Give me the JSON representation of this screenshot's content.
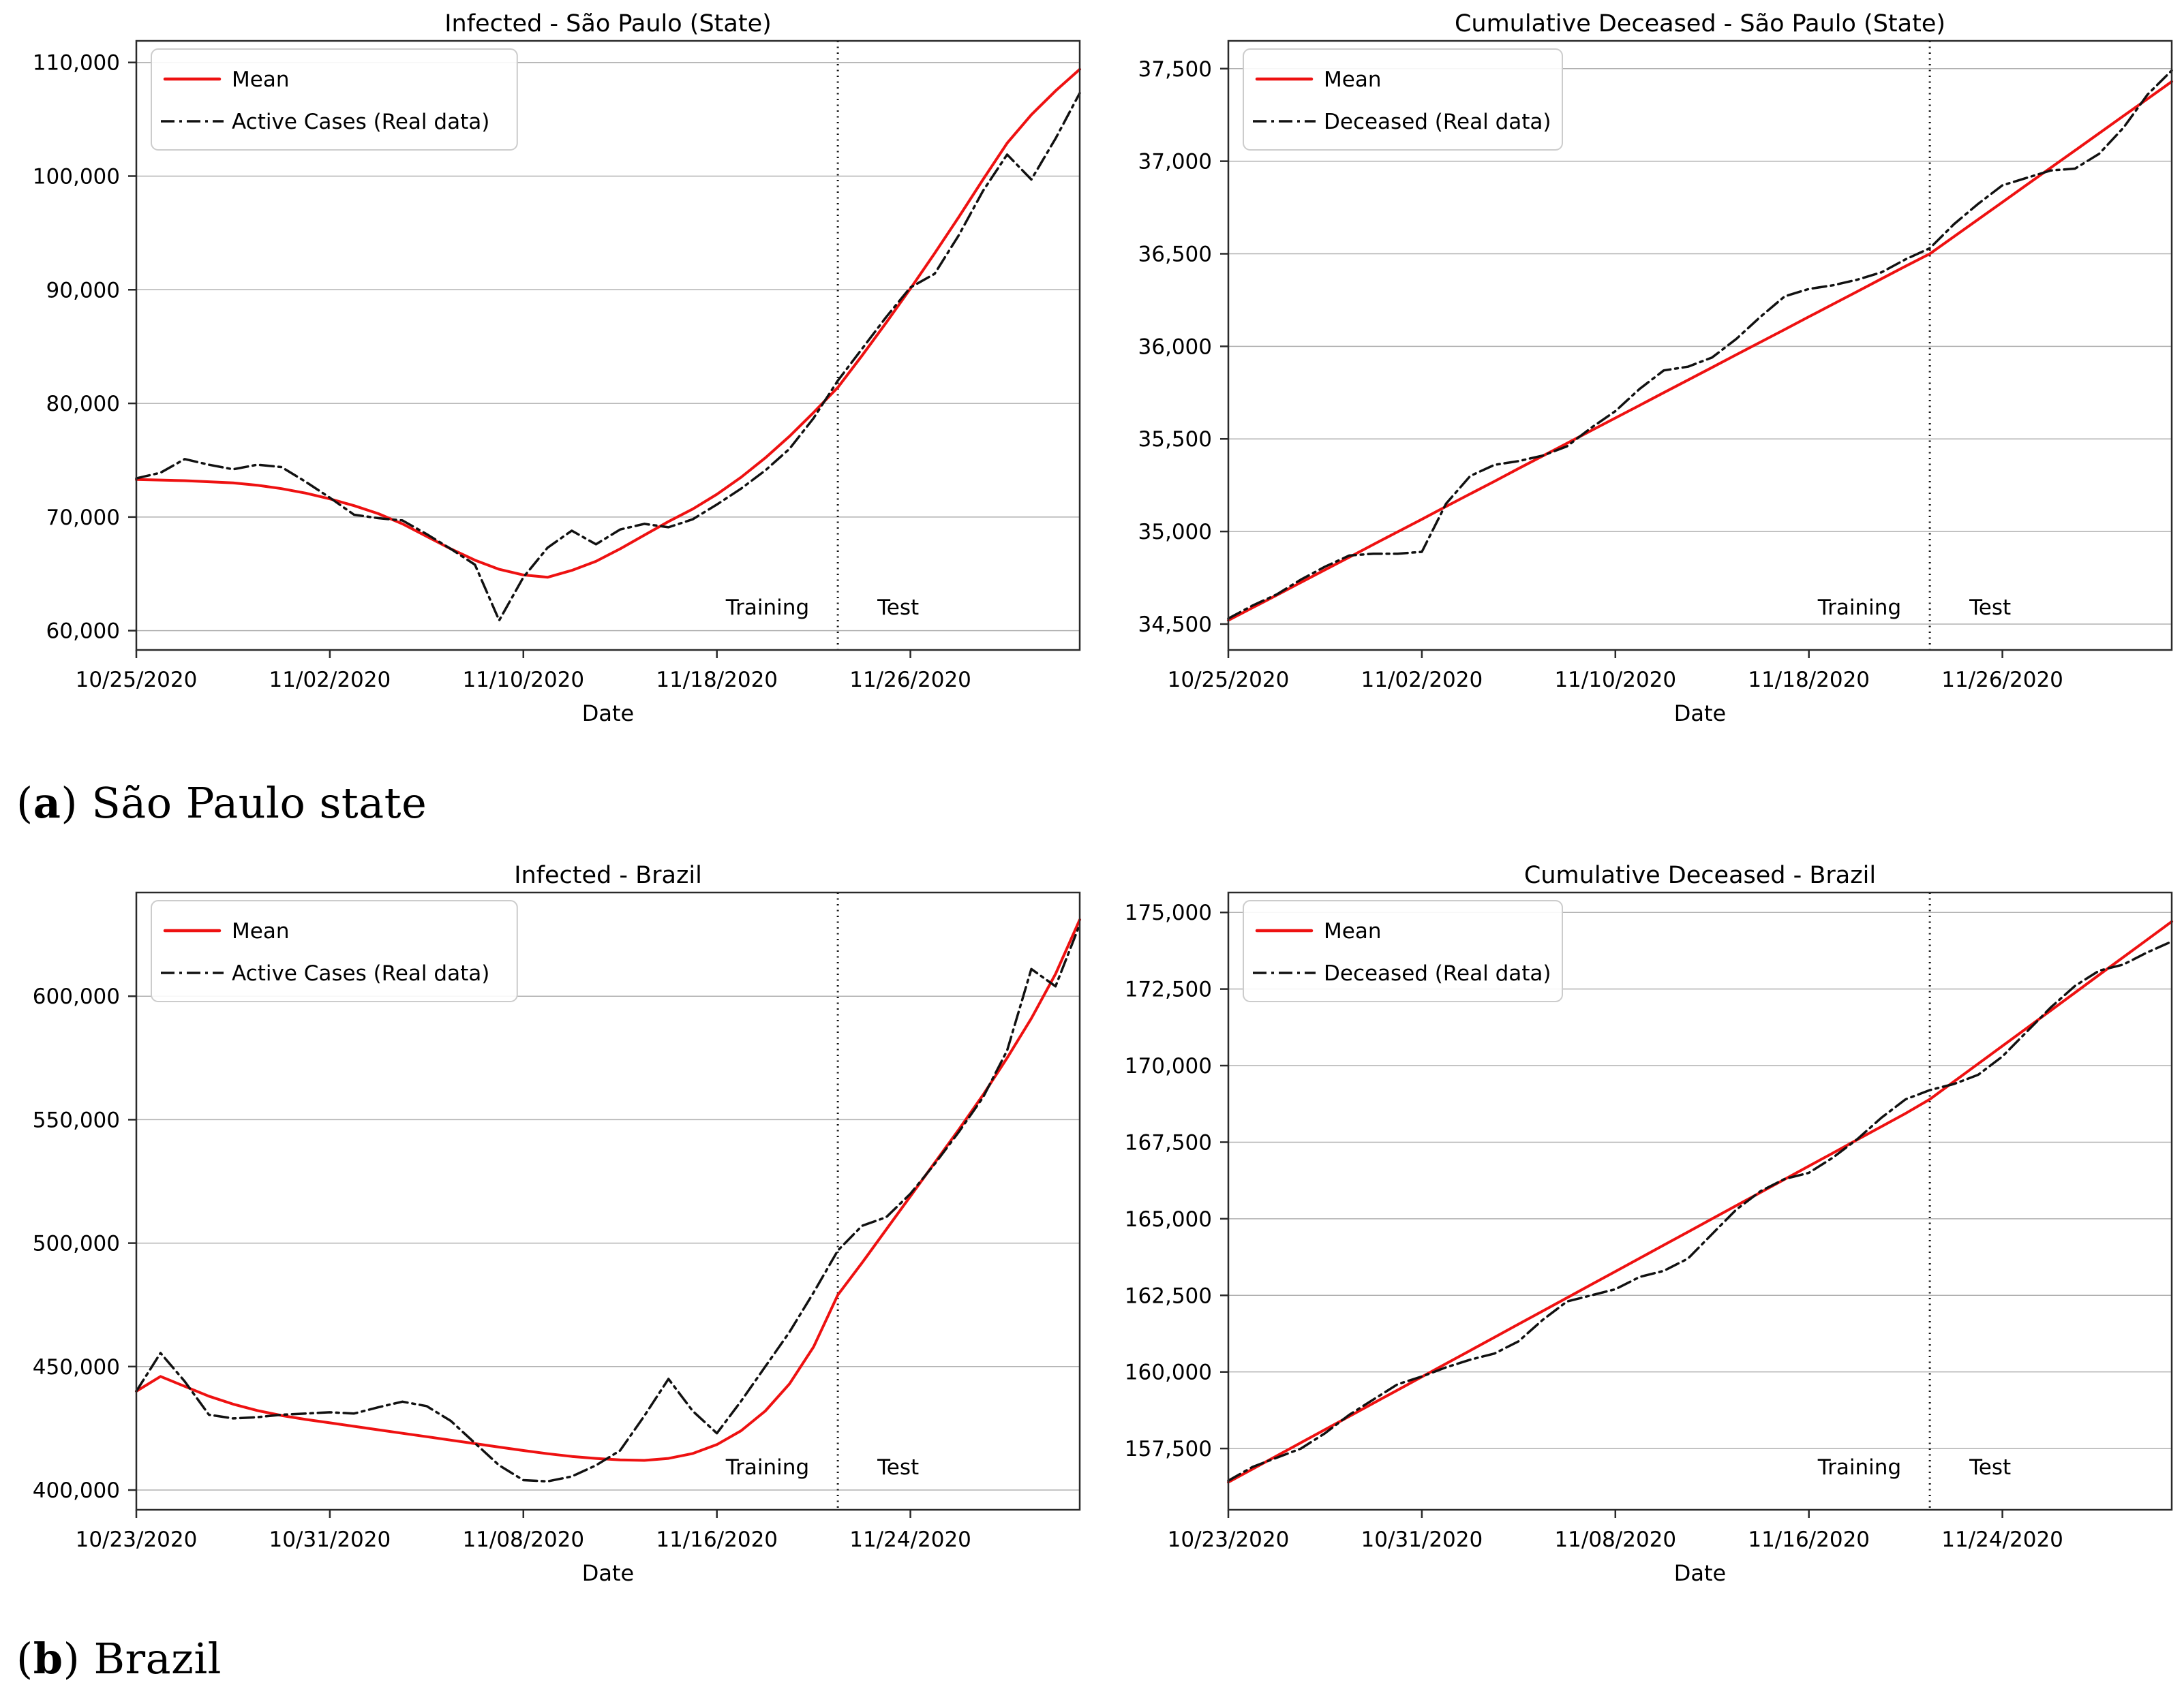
{
  "figure": {
    "captions": [
      {
        "letter": "a",
        "text": "São Paulo state"
      },
      {
        "letter": "b",
        "text": "Brazil"
      }
    ],
    "annotations": {
      "training": "Training",
      "test": "Test"
    },
    "colors": {
      "mean": "#ee1111",
      "real": "#111111",
      "grid": "#b0b0b0",
      "spine": "#2a2a2a",
      "text": "#000000"
    }
  },
  "chart_data": [
    {
      "type": "line",
      "title": "Infected - São Paulo (State)",
      "xlabel": "Date",
      "x_tick_labels": [
        "10/25/2020",
        "11/02/2020",
        "11/10/2020",
        "11/18/2020",
        "11/26/2020"
      ],
      "x_tick_days": [
        0,
        8,
        16,
        24,
        32
      ],
      "x_domain_days": [
        0,
        39
      ],
      "start_date": "10/25/2020",
      "ylim": [
        58300,
        111900
      ],
      "y_ticks": [
        60000,
        70000,
        80000,
        90000,
        100000,
        110000
      ],
      "grid": true,
      "legend_position": "upper left",
      "train_test_split_day": 29,
      "legend": [
        "Mean",
        "Active Cases (Real data)"
      ],
      "series": [
        {
          "name": "Mean",
          "style": "solid-red",
          "values": [
            73300,
            73250,
            73200,
            73100,
            73000,
            72800,
            72500,
            72100,
            71600,
            71000,
            70300,
            69400,
            68300,
            67200,
            66200,
            65400,
            64900,
            64700,
            65300,
            66100,
            67200,
            68400,
            69600,
            70700,
            72000,
            73500,
            75200,
            77100,
            79200,
            81400,
            84200,
            87100,
            90100,
            93200,
            96400,
            99700,
            102900,
            105400,
            107500,
            109400
          ]
        },
        {
          "name": "Active Cases (Real data)",
          "style": "dashdot-black",
          "values": [
            73400,
            73900,
            75100,
            74600,
            74200,
            74600,
            74400,
            73100,
            71700,
            70200,
            69900,
            69700,
            68500,
            67200,
            65800,
            60900,
            64700,
            67300,
            68800,
            67600,
            68900,
            69400,
            69100,
            69800,
            71100,
            72500,
            74100,
            76000,
            78700,
            82000,
            84800,
            87600,
            90200,
            91400,
            94800,
            98700,
            101900,
            99700,
            103300,
            107300
          ]
        }
      ]
    },
    {
      "type": "line",
      "title": "Cumulative Deceased - São Paulo (State)",
      "xlabel": "Date",
      "x_tick_labels": [
        "10/25/2020",
        "11/02/2020",
        "11/10/2020",
        "11/18/2020",
        "11/26/2020"
      ],
      "x_tick_days": [
        0,
        8,
        16,
        24,
        32
      ],
      "x_domain_days": [
        0,
        39
      ],
      "start_date": "10/25/2020",
      "ylim": [
        34360,
        37650
      ],
      "y_ticks": [
        34500,
        35000,
        35500,
        36000,
        36500,
        37000,
        37500
      ],
      "grid": true,
      "legend_position": "upper left",
      "train_test_split_day": 29,
      "legend": [
        "Mean",
        "Deceased (Real data)"
      ],
      "series": [
        {
          "name": "Mean",
          "style": "solid-red",
          "values": [
            34520,
            34588,
            34656,
            34725,
            34793,
            34861,
            34930,
            34998,
            35066,
            35135,
            35203,
            35271,
            35340,
            35408,
            35476,
            35545,
            35613,
            35681,
            35750,
            35818,
            35886,
            35955,
            36023,
            36091,
            36160,
            36228,
            36296,
            36365,
            36433,
            36500,
            36593,
            36686,
            36779,
            36872,
            36965,
            37058,
            37151,
            37244,
            37337,
            37430
          ]
        },
        {
          "name": "Deceased (Real data)",
          "style": "dashdot-black",
          "values": [
            34530,
            34600,
            34660,
            34740,
            34810,
            34870,
            34880,
            34880,
            34890,
            35150,
            35300,
            35360,
            35380,
            35410,
            35460,
            35560,
            35650,
            35770,
            35870,
            35890,
            35940,
            36040,
            36160,
            36270,
            36310,
            36330,
            36360,
            36400,
            36470,
            36530,
            36660,
            36770,
            36870,
            36910,
            36950,
            36960,
            37040,
            37180,
            37360,
            37490
          ]
        }
      ]
    },
    {
      "type": "line",
      "title": "Infected - Brazil",
      "xlabel": "Date",
      "x_tick_labels": [
        "10/23/2020",
        "10/31/2020",
        "11/08/2020",
        "11/16/2020",
        "11/24/2020"
      ],
      "x_tick_days": [
        0,
        8,
        16,
        24,
        32
      ],
      "x_domain_days": [
        0,
        39
      ],
      "start_date": "10/23/2020",
      "ylim": [
        392000,
        642000
      ],
      "y_ticks": [
        400000,
        450000,
        500000,
        550000,
        600000
      ],
      "grid": true,
      "legend_position": "upper left",
      "train_test_split_day": 29,
      "legend": [
        "Mean",
        "Active Cases (Real data)"
      ],
      "series": [
        {
          "name": "Mean",
          "style": "solid-red",
          "values": [
            440000,
            446000,
            442000,
            438000,
            434800,
            432200,
            430200,
            428600,
            427200,
            425800,
            424400,
            423000,
            421600,
            420200,
            418800,
            417400,
            416000,
            414700,
            413600,
            412800,
            412200,
            412000,
            412800,
            414800,
            418400,
            424000,
            432000,
            443000,
            458000,
            479000,
            492000,
            505500,
            519000,
            532500,
            546000,
            560000,
            575000,
            591000,
            609000,
            631000
          ]
        },
        {
          "name": "Active Cases (Real data)",
          "style": "dashdot-black",
          "values": [
            440000,
            455500,
            444000,
            430500,
            429000,
            429500,
            430500,
            431000,
            431500,
            431000,
            433500,
            435800,
            434000,
            428000,
            419000,
            410000,
            404000,
            403500,
            405500,
            410000,
            416000,
            430000,
            445000,
            432000,
            423000,
            436000,
            450000,
            464000,
            480000,
            497000,
            507000,
            510500,
            520000,
            532000,
            545000,
            559000,
            578000,
            611000,
            604000,
            629000
          ]
        }
      ]
    },
    {
      "type": "line",
      "title": "Cumulative Deceased - Brazil",
      "xlabel": "Date",
      "x_tick_labels": [
        "10/23/2020",
        "10/31/2020",
        "11/08/2020",
        "11/16/2020",
        "11/24/2020"
      ],
      "x_tick_days": [
        0,
        8,
        16,
        24,
        32
      ],
      "x_domain_days": [
        0,
        39
      ],
      "start_date": "10/23/2020",
      "ylim": [
        155500,
        175650
      ],
      "y_ticks": [
        157500,
        160000,
        162500,
        165000,
        167500,
        170000,
        172500,
        175000
      ],
      "grid": true,
      "legend_position": "upper left",
      "train_test_split_day": 29,
      "legend": [
        "Mean",
        "Deceased (Real data)"
      ],
      "series": [
        {
          "name": "Mean",
          "style": "solid-red",
          "values": [
            156400,
            156830,
            157260,
            157690,
            158120,
            158550,
            158980,
            159410,
            159840,
            160270,
            160700,
            161130,
            161560,
            161990,
            162420,
            162850,
            163280,
            163710,
            164140,
            164570,
            165000,
            165430,
            165860,
            166290,
            166720,
            167150,
            167580,
            168010,
            168440,
            168900,
            169480,
            170060,
            170640,
            171220,
            171800,
            172380,
            172960,
            173540,
            174120,
            174700
          ]
        },
        {
          "name": "Deceased (Real data)",
          "style": "dashdot-black",
          "values": [
            156450,
            156900,
            157200,
            157500,
            158000,
            158600,
            159100,
            159600,
            159850,
            160150,
            160400,
            160600,
            161000,
            161700,
            162300,
            162500,
            162700,
            163100,
            163300,
            163700,
            164500,
            165300,
            165900,
            166300,
            166500,
            167000,
            167600,
            168300,
            168900,
            169200,
            169400,
            169700,
            170300,
            171100,
            171900,
            172600,
            173100,
            173300,
            173700,
            174050
          ]
        }
      ]
    }
  ]
}
